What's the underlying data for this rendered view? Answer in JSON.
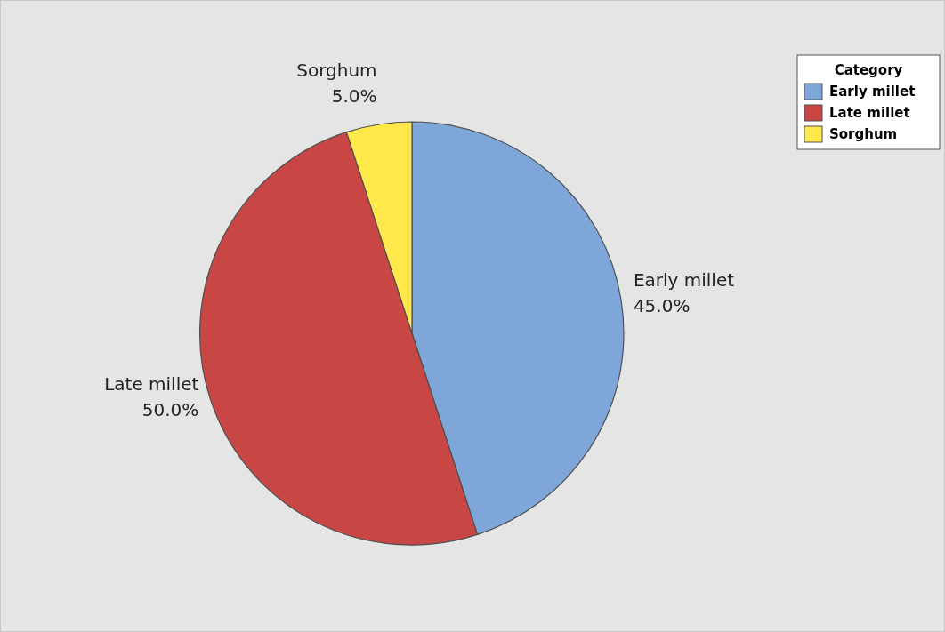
{
  "chart_data": {
    "type": "pie",
    "categories": [
      "Early millet",
      "Late millet",
      "Sorghum"
    ],
    "values": [
      45,
      50,
      5
    ],
    "value_labels": [
      "45.0%",
      "50.0%",
      "5.0%"
    ],
    "colors": [
      "#7ea6d8",
      "#c84644",
      "#ffe94a"
    ],
    "legend": "top right",
    "legend_title": "Category"
  }
}
